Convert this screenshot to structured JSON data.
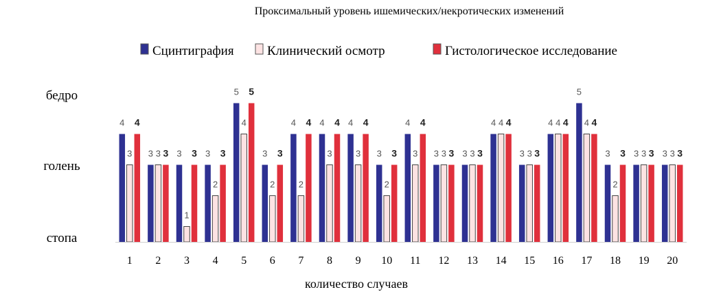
{
  "chart_data": {
    "type": "bar",
    "title": "Проксимальный уровень  ишемических/некротических изменений",
    "xlabel": "количество случаев",
    "ylabel": "",
    "categories": [
      "1",
      "2",
      "3",
      "4",
      "5",
      "6",
      "7",
      "8",
      "9",
      "10",
      "11",
      "12",
      "13",
      "14",
      "15",
      "16",
      "17",
      "18",
      "19",
      "20"
    ],
    "y_tick_labels": [
      {
        "value": 1,
        "label": "стопа"
      },
      {
        "value": 3,
        "label": "голень"
      },
      {
        "value": 5,
        "label": "бедро"
      }
    ],
    "ylim": [
      0.5,
      5
    ],
    "series": [
      {
        "name": "Сцинтиграфия",
        "color": "#2e3192",
        "values": [
          4,
          3,
          3,
          3,
          5,
          3,
          4,
          4,
          4,
          3,
          4,
          3,
          3,
          4,
          3,
          4,
          5,
          3,
          3,
          3
        ]
      },
      {
        "name": "Клинический осмотр",
        "color": "#fde3e3",
        "values": [
          3,
          3,
          1,
          2,
          4,
          2,
          2,
          3,
          3,
          2,
          3,
          3,
          3,
          4,
          3,
          4,
          4,
          2,
          3,
          3
        ]
      },
      {
        "name": "Гистологическое исследование",
        "color": "#e0303c",
        "values": [
          4,
          3,
          3,
          3,
          5,
          3,
          4,
          4,
          4,
          3,
          4,
          3,
          3,
          4,
          3,
          4,
          4,
          3,
          3,
          3
        ]
      }
    ],
    "legend_position": "top",
    "grid": false
  }
}
